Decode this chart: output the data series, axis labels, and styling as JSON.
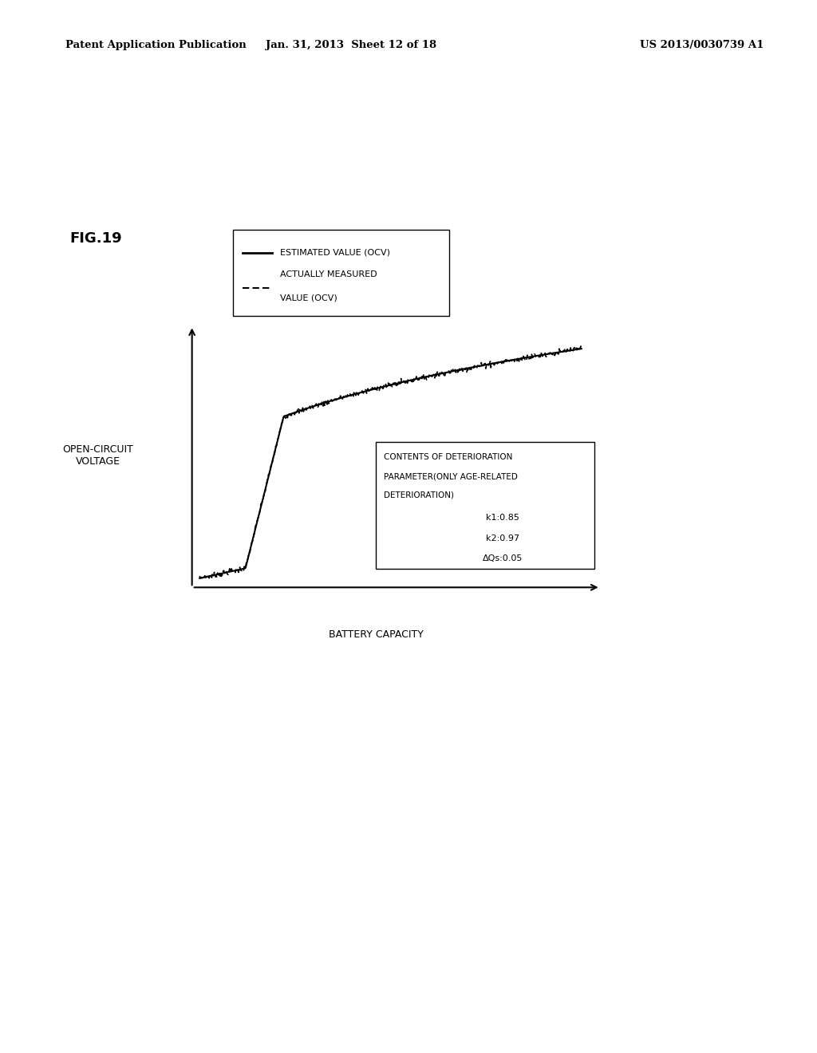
{
  "fig_label": "FIG.19",
  "header_left": "Patent Application Publication",
  "header_center": "Jan. 31, 2013  Sheet 12 of 18",
  "header_right": "US 2013/0030739 A1",
  "ylabel": "OPEN-CIRCUIT\nVOLTAGE",
  "xlabel": "BATTERY CAPACITY",
  "legend_line1": "ESTIMATED VALUE (OCV)",
  "legend_line2_a": "ACTUALLY MEASURED",
  "legend_line2_b": "VALUE (OCV)",
  "info_line1": "CONTENTS OF DETERIORATION",
  "info_line2": "PARAMETER(ONLY AGE-RELATED",
  "info_line3": "DETERIORATION)",
  "info_k1": "k1:0.85",
  "info_k2": "k2:0.97",
  "info_dqs": "ΔQs:0.05",
  "background_color": "#ffffff",
  "curve_color": "#000000",
  "text_color": "#000000"
}
